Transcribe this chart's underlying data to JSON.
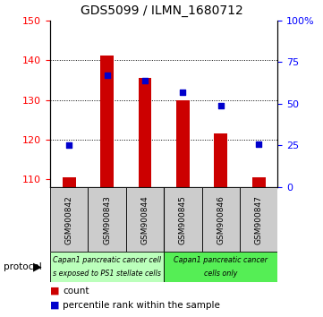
{
  "title": "GDS5099 / ILMN_1680712",
  "samples": [
    "GSM900842",
    "GSM900843",
    "GSM900844",
    "GSM900845",
    "GSM900846",
    "GSM900847"
  ],
  "counts": [
    110.5,
    141.2,
    135.5,
    130.0,
    121.5,
    110.5
  ],
  "percentiles": [
    25.0,
    67.0,
    64.0,
    57.0,
    49.0,
    25.5
  ],
  "ylim_left": [
    108,
    150
  ],
  "ylim_right": [
    0,
    100
  ],
  "yticks_left": [
    110,
    120,
    130,
    140,
    150
  ],
  "yticks_right": [
    0,
    25,
    50,
    75,
    100
  ],
  "ytick_labels_right": [
    "0",
    "25",
    "50",
    "75",
    "100%"
  ],
  "bar_color": "#cc0000",
  "dot_color": "#0000cc",
  "grid_ticks": [
    120,
    130,
    140
  ],
  "group1_label_line1": "Capan1 pancreatic cancer cell",
  "group1_label_line2": "s exposed to PS1 stellate cells",
  "group2_label_line1": "Capan1 pancreatic cancer",
  "group2_label_line2": "cells only",
  "group1_color": "#bbffbb",
  "group2_color": "#55ee55",
  "legend_items": [
    {
      "color": "#cc0000",
      "label": "count"
    },
    {
      "color": "#0000cc",
      "label": "percentile rank within the sample"
    }
  ],
  "plot_bg": "#ffffff",
  "sample_box_color": "#cccccc",
  "title_fontsize": 10
}
